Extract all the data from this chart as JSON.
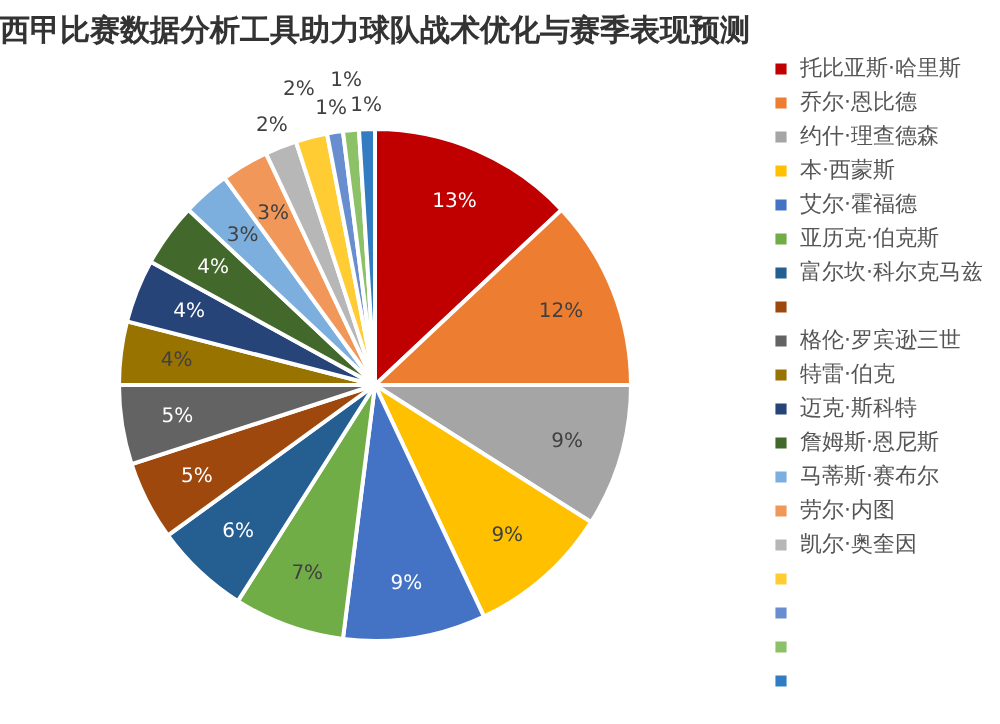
{
  "chart_data": {
    "type": "pie",
    "title": "西甲比赛数据分析工具助力球队战术优化与赛季表现预测",
    "categories": [
      "托比亚斯·哈里斯",
      "乔尔·恩比德",
      "约什·理查德森",
      "本·西蒙斯",
      "艾尔·霍福德",
      "亚历克·伯克斯",
      "富尔坎·科尔克马兹",
      null,
      "格伦·罗宾逊三世",
      "特雷·伯克",
      "迈克·斯科特",
      "詹姆斯·恩尼斯",
      "马蒂斯·赛布尔",
      "劳尔·内图",
      "凯尔·奥奎因",
      null,
      null,
      null,
      null
    ],
    "values": [
      13,
      12,
      9,
      9,
      9,
      7,
      6,
      5,
      5,
      4,
      4,
      4,
      3,
      3,
      2,
      2,
      1,
      1,
      1
    ],
    "value_labels": [
      "13%",
      "12%",
      "9%",
      "9%",
      "9%",
      "7%",
      "6%",
      "5%",
      "5%",
      "4%",
      "4%",
      "4%",
      "3%",
      "3%",
      "2%",
      "2%",
      "1%",
      "1%",
      "1%"
    ],
    "colors": [
      "#c00000",
      "#ed7d31",
      "#a5a5a5",
      "#ffc000",
      "#4472c4",
      "#70ad47",
      "#255e91",
      "#9e480e",
      "#636363",
      "#997300",
      "#264478",
      "#43682b",
      "#7cafdd",
      "#f1975a",
      "#b7b7b7",
      "#ffcd33",
      "#698ed0",
      "#8cc168",
      "#327dc2"
    ],
    "legend": "right"
  }
}
